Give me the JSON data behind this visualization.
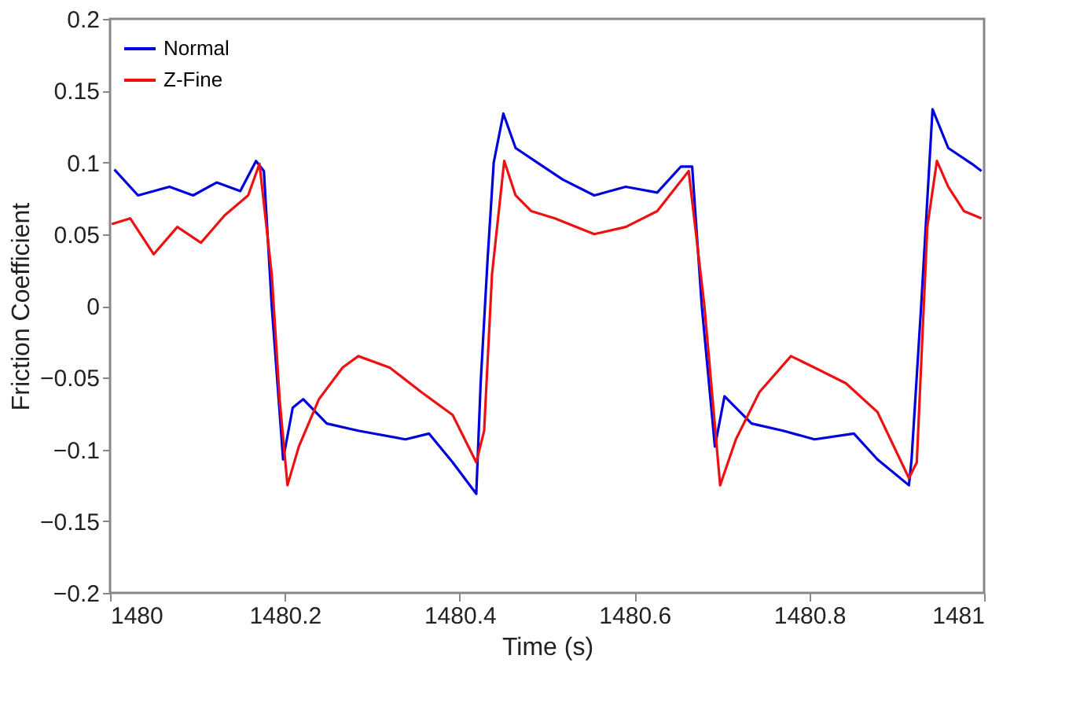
{
  "chart_data": {
    "type": "line",
    "xlabel": "Time (s)",
    "ylabel": "Friction Coefficient",
    "xlim": [
      1480,
      1481
    ],
    "ylim": [
      -0.2,
      0.2
    ],
    "xticks": [
      1480,
      1480.2,
      1480.4,
      1480.6,
      1480.8,
      1481
    ],
    "yticks": [
      -0.2,
      -0.15,
      -0.1,
      -0.05,
      0,
      0.05,
      0.1,
      0.15,
      0.2
    ],
    "grid": false,
    "legend": "top left",
    "line_style": "solid",
    "marker": "none",
    "series": [
      {
        "name": "Normal",
        "color": "#0000dd",
        "x": [
          1480.005,
          1480.032,
          1480.068,
          1480.095,
          1480.122,
          1480.149,
          1480.167,
          1480.176,
          1480.185,
          1480.198,
          1480.209,
          1480.221,
          1480.248,
          1480.284,
          1480.338,
          1480.365,
          1480.392,
          1480.419,
          1480.424,
          1480.432,
          1480.439,
          1480.45,
          1480.464,
          1480.491,
          1480.518,
          1480.554,
          1480.59,
          1480.626,
          1480.653,
          1480.666,
          1480.677,
          1480.692,
          1480.703,
          1480.734,
          1480.77,
          1480.806,
          1480.851,
          1480.878,
          1480.914,
          1480.917,
          1480.928,
          1480.941,
          1480.959,
          1480.986,
          1480.997
        ],
        "values": [
          0.095,
          0.077,
          0.083,
          0.077,
          0.086,
          0.08,
          0.101,
          0.094,
          0,
          -0.107,
          -0.071,
          -0.065,
          -0.082,
          -0.087,
          -0.093,
          -0.089,
          -0.109,
          -0.131,
          -0.054,
          0.033,
          0.1,
          0.134,
          0.11,
          0.099,
          0.088,
          0.077,
          0.083,
          0.079,
          0.097,
          0.097,
          0,
          -0.098,
          -0.063,
          -0.082,
          -0.087,
          -0.093,
          -0.089,
          -0.107,
          -0.125,
          -0.107,
          0,
          0.137,
          0.11,
          0.099,
          0.094
        ]
      },
      {
        "name": "Z-Fine",
        "color": "#ee1111",
        "x": [
          1480.002,
          1480.023,
          1480.05,
          1480.077,
          1480.104,
          1480.131,
          1480.158,
          1480.171,
          1480.185,
          1480.194,
          1480.203,
          1480.216,
          1480.239,
          1480.266,
          1480.284,
          1480.32,
          1480.356,
          1480.392,
          1480.419,
          1480.428,
          1480.437,
          1480.451,
          1480.464,
          1480.482,
          1480.509,
          1480.554,
          1480.59,
          1480.626,
          1480.662,
          1480.68,
          1480.698,
          1480.716,
          1480.743,
          1480.779,
          1480.806,
          1480.842,
          1480.878,
          1480.914,
          1480.923,
          1480.935,
          1480.946,
          1480.959,
          1480.977,
          1480.997
        ],
        "values": [
          0.057,
          0.061,
          0.036,
          0.055,
          0.044,
          0.063,
          0.077,
          0.099,
          0.022,
          -0.065,
          -0.125,
          -0.098,
          -0.065,
          -0.043,
          -0.035,
          -0.043,
          -0.06,
          -0.076,
          -0.109,
          -0.087,
          0.022,
          0.101,
          0.077,
          0.066,
          0.061,
          0.05,
          0.055,
          0.066,
          0.094,
          0,
          -0.125,
          -0.093,
          -0.06,
          -0.035,
          -0.043,
          -0.054,
          -0.074,
          -0.12,
          -0.109,
          0.055,
          0.101,
          0.083,
          0.066,
          0.061
        ]
      }
    ]
  }
}
